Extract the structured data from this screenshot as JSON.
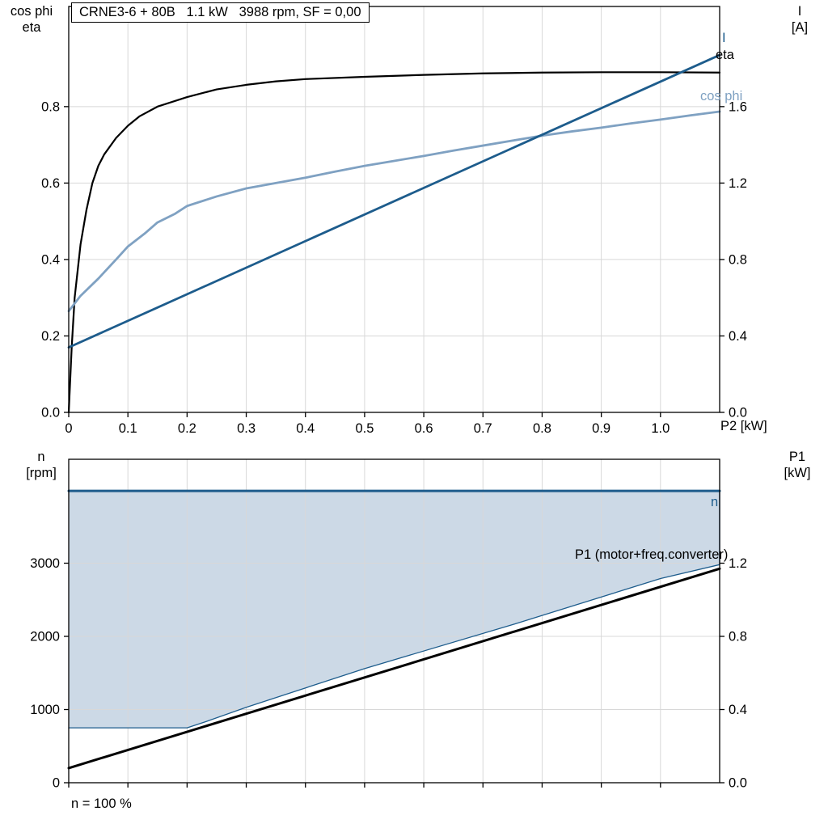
{
  "header": {
    "title": "CRNE3-6 + 80B   1.1 kW   3988 rpm, SF = 0,00"
  },
  "footnote": "n = 100 %",
  "palette": {
    "dark_blue": "#1d5c8c",
    "light_blue": "#7fa1c2",
    "fill_blue": "#ccd9e6",
    "grid": "#d8d8d8",
    "black": "#000000"
  },
  "chart_data": [
    {
      "type": "line",
      "name": "motor-electrical-curves",
      "title": "CRNE3-6 + 80B   1.1 kW   3988 rpm, SF = 0,00",
      "x_axis": {
        "label": "P2 [kW]",
        "min": 0,
        "max": 1.1,
        "tick_values": [
          0,
          0.1,
          0.2,
          0.3,
          0.4,
          0.5,
          0.6,
          0.7,
          0.8,
          0.9,
          1.0
        ],
        "tick_labels": [
          "0",
          "0.1",
          "0.2",
          "0.3",
          "0.4",
          "0.5",
          "0.6",
          "0.7",
          "0.8",
          "0.9",
          "1.0"
        ]
      },
      "y_left": {
        "title_lines": [
          "cos phi",
          "eta"
        ],
        "min": 0,
        "max": 1.062,
        "tick_values": [
          0,
          0.2,
          0.4,
          0.6,
          0.8
        ],
        "tick_labels": [
          "0.0",
          "0.2",
          "0.4",
          "0.6",
          "0.8"
        ]
      },
      "y_right": {
        "title_lines": [
          "I",
          "[A]"
        ],
        "min": 0,
        "max": 2.124,
        "tick_values": [
          0,
          0.4,
          0.8,
          1.2,
          1.6
        ],
        "tick_labels": [
          "0.0",
          "0.4",
          "0.8",
          "1.2",
          "1.6"
        ]
      },
      "grid": true,
      "series": [
        {
          "name": "eta",
          "label": "eta",
          "axis": "left",
          "color": "#000000",
          "width": 2.2,
          "points": [
            [
              0,
              0
            ],
            [
              0.005,
              0.17
            ],
            [
              0.01,
              0.3
            ],
            [
              0.02,
              0.44
            ],
            [
              0.03,
              0.53
            ],
            [
              0.04,
              0.6
            ],
            [
              0.05,
              0.645
            ],
            [
              0.06,
              0.675
            ],
            [
              0.08,
              0.718
            ],
            [
              0.1,
              0.75
            ],
            [
              0.12,
              0.775
            ],
            [
              0.15,
              0.8
            ],
            [
              0.2,
              0.825
            ],
            [
              0.25,
              0.845
            ],
            [
              0.3,
              0.857
            ],
            [
              0.35,
              0.866
            ],
            [
              0.4,
              0.872
            ],
            [
              0.5,
              0.878
            ],
            [
              0.6,
              0.883
            ],
            [
              0.7,
              0.887
            ],
            [
              0.8,
              0.889
            ],
            [
              0.9,
              0.89
            ],
            [
              1.0,
              0.89
            ],
            [
              1.1,
              0.889
            ]
          ]
        },
        {
          "name": "cos_phi",
          "label": "cos phi",
          "axis": "left",
          "color": "#7fa1c2",
          "width": 2.8,
          "points": [
            [
              0,
              0.265
            ],
            [
              0.02,
              0.305
            ],
            [
              0.05,
              0.35
            ],
            [
              0.08,
              0.4
            ],
            [
              0.1,
              0.434
            ],
            [
              0.13,
              0.47
            ],
            [
              0.15,
              0.497
            ],
            [
              0.18,
              0.52
            ],
            [
              0.2,
              0.54
            ],
            [
              0.25,
              0.565
            ],
            [
              0.3,
              0.586
            ],
            [
              0.35,
              0.6
            ],
            [
              0.4,
              0.614
            ],
            [
              0.45,
              0.63
            ],
            [
              0.5,
              0.645
            ],
            [
              0.55,
              0.658
            ],
            [
              0.6,
              0.671
            ],
            [
              0.65,
              0.685
            ],
            [
              0.7,
              0.698
            ],
            [
              0.75,
              0.711
            ],
            [
              0.8,
              0.724
            ],
            [
              0.85,
              0.735
            ],
            [
              0.9,
              0.745
            ],
            [
              0.95,
              0.756
            ],
            [
              1.0,
              0.766
            ],
            [
              1.05,
              0.777
            ],
            [
              1.1,
              0.787
            ]
          ]
        },
        {
          "name": "I",
          "label": "I",
          "axis": "right",
          "color": "#1d5c8c",
          "width": 2.8,
          "points": [
            [
              0,
              0.34
            ],
            [
              1.1,
              1.87
            ]
          ]
        }
      ]
    },
    {
      "type": "line",
      "name": "speed-and-input-power",
      "title": "",
      "x_axis": {
        "label": "",
        "min": 0,
        "max": 1.1,
        "tick_values": [
          0,
          0.1,
          0.2,
          0.3,
          0.4,
          0.5,
          0.6,
          0.7,
          0.8,
          0.9,
          1.0
        ],
        "tick_labels": []
      },
      "y_left": {
        "title_lines": [
          "n",
          "[rpm]"
        ],
        "min": 0,
        "max": 4420,
        "tick_values": [
          0,
          1000,
          2000,
          3000
        ],
        "tick_labels": [
          "0",
          "1000",
          "2000",
          "3000"
        ]
      },
      "y_right": {
        "title_lines": [
          "P1",
          "[kW]"
        ],
        "min": 0,
        "max": 1.768,
        "tick_values": [
          0,
          0.4,
          0.8,
          1.2
        ],
        "tick_labels": [
          "0.0",
          "0.4",
          "0.8",
          "1.2"
        ]
      },
      "grid": true,
      "fill": {
        "between": [
          "n_max",
          "n_min"
        ],
        "color": "#ccd9e6"
      },
      "series": [
        {
          "name": "n_max",
          "label": "n",
          "axis": "left",
          "color": "#1d5c8c",
          "width": 3,
          "points": [
            [
              0,
              3988
            ],
            [
              1.1,
              3988
            ]
          ]
        },
        {
          "name": "n_min",
          "label": "",
          "axis": "left",
          "color": "#1d5c8c",
          "width": 1.3,
          "points": [
            [
              0,
              750
            ],
            [
              0.2,
              750
            ],
            [
              0.23,
              830
            ],
            [
              0.3,
              1030
            ],
            [
              0.5,
              1560
            ],
            [
              0.75,
              2160
            ],
            [
              1.0,
              2790
            ],
            [
              1.1,
              2980
            ],
            [
              1.1,
              3988
            ]
          ]
        },
        {
          "name": "P1",
          "label": "P1 (motor+freq.converter)",
          "axis": "right",
          "color": "#000000",
          "width": 3,
          "points": [
            [
              0,
              0.08
            ],
            [
              1.1,
              1.17
            ]
          ]
        }
      ]
    }
  ]
}
